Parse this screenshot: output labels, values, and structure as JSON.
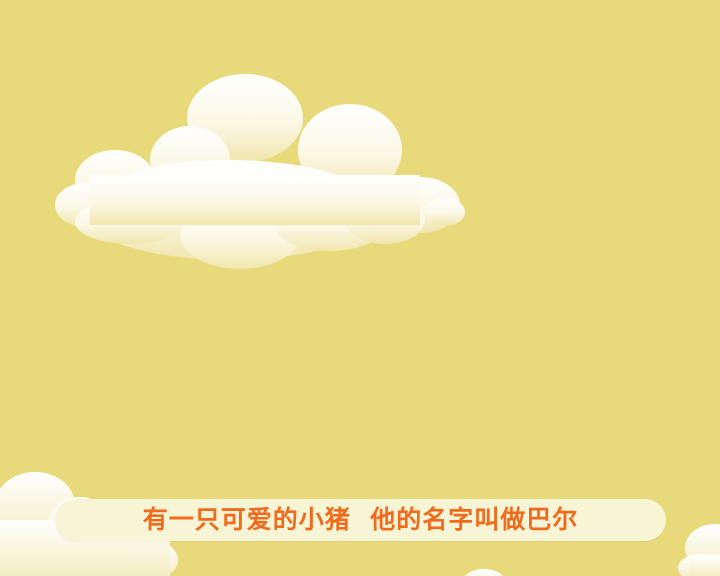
{
  "scene": {
    "background_color": "#e8da7a",
    "cloud_color_top": "#ffffff",
    "cloud_color_bottom": "#f3e9b2"
  },
  "caption": {
    "text": "有一只可爱的小猪  他的名字叫做巴尔",
    "text_color": "#f26b1d",
    "bar_color": "#f8f4d6"
  }
}
